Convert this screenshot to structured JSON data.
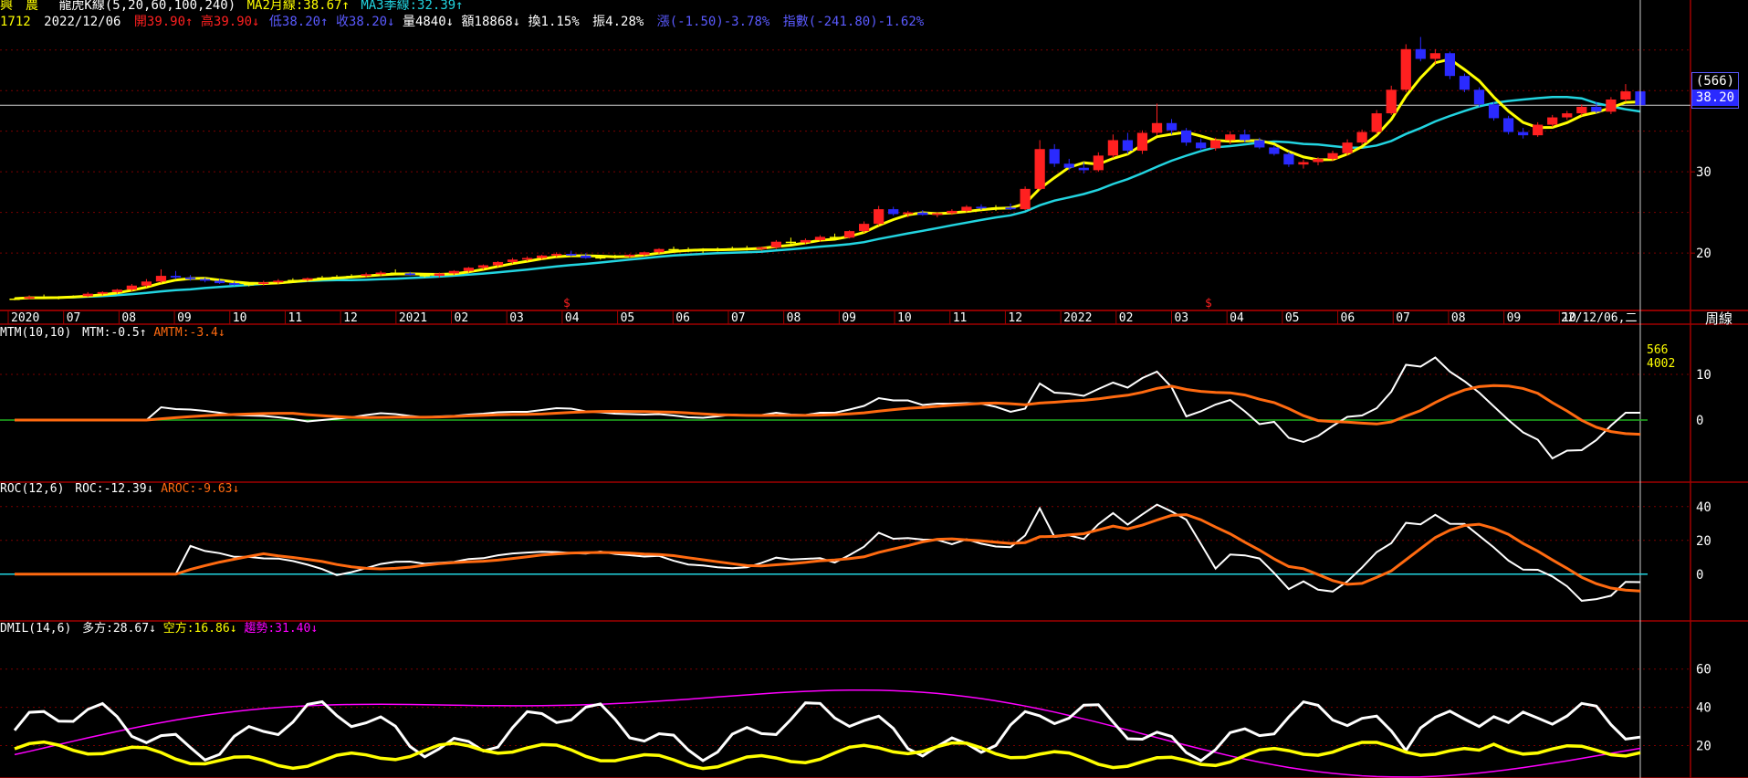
{
  "header": {
    "row1": {
      "name": "興　農",
      "kline": "龍虎K線(5,20,60,100,240)",
      "ma2": "MA2月線:38.67↑",
      "ma3": "MA3季線:32.39↑"
    },
    "row2": {
      "code": "1712",
      "date": "2022/12/06",
      "open": "開39.90↑",
      "high": "高39.90↓",
      "low": "低38.20↑",
      "close": "收38.20↓",
      "volume": "量4840↓",
      "amount": "額18868↓",
      "turnover": "換1.15%",
      "amplitude": "振4.28%",
      "change": "漲(-1.50)-3.78%",
      "index": "指數(-241.80)-1.62%"
    }
  },
  "price_box": {
    "line1": "(566)",
    "line2": "38.20"
  },
  "week_label": "周線",
  "colors": {
    "up": "#ff2020",
    "down": "#2a2aff",
    "doji": "#ffff00",
    "ma2": "#ffff00",
    "ma3": "#22d4e0",
    "grid": "#8b0000",
    "axis": "#8b0000",
    "white": "#ffffff",
    "orange": "#ff6a10",
    "green": "#20b020",
    "cyan": "#22d4e0",
    "magenta": "#ff00ff",
    "blue": "#5a5aff"
  },
  "price_panel": {
    "y_ticks": [
      "30",
      "20"
    ],
    "x_labels": [
      "2020",
      "07",
      "08",
      "09",
      "10",
      "11",
      "12",
      "2021",
      "02",
      "03",
      "04",
      "05",
      "06",
      "07",
      "08",
      "09",
      "10",
      "11",
      "12",
      "2022",
      "02",
      "03",
      "04",
      "05",
      "06",
      "07",
      "08",
      "09",
      "10"
    ],
    "cursor_label": "22/12/06,二",
    "dividend_marks": [
      "$",
      "$"
    ]
  },
  "mtm_panel": {
    "title": "MTM(10,10)",
    "value": "MTM:-0.5↑",
    "avg": "AMTM:-3.4↓",
    "y_ticks": [
      "10",
      "0"
    ],
    "cursor_text1": "566",
    "cursor_text2": "4002"
  },
  "roc_panel": {
    "title": "ROC(12,6)",
    "value": "ROC:-12.39↓",
    "avg": "AROC:-9.63↓",
    "y_ticks": [
      "40",
      "20",
      "0"
    ]
  },
  "dmi_panel": {
    "title": "DMIL(14,6)",
    "plus": "多方:28.67↓",
    "minus": "空方:16.86↓",
    "adx": "趨勢:31.40↓",
    "y_ticks": [
      "60",
      "40",
      "20"
    ]
  },
  "chart_data": {
    "type": "candlestick",
    "timeframe": "weekly",
    "candles": [
      [
        14.3,
        14.5,
        14.2,
        14.4
      ],
      [
        14.4,
        14.8,
        14.3,
        14.6
      ],
      [
        14.6,
        14.9,
        14.4,
        14.5
      ],
      [
        14.5,
        14.7,
        14.3,
        14.6
      ],
      [
        14.6,
        14.8,
        14.5,
        14.7
      ],
      [
        14.7,
        15.2,
        14.6,
        15.0
      ],
      [
        15.0,
        15.3,
        14.8,
        15.2
      ],
      [
        15.2,
        15.6,
        15.0,
        15.5
      ],
      [
        15.5,
        16.2,
        15.3,
        16.0
      ],
      [
        16.0,
        16.8,
        15.8,
        16.5
      ],
      [
        16.5,
        18.0,
        16.3,
        17.2
      ],
      [
        17.2,
        17.8,
        16.8,
        17.0
      ],
      [
        17.0,
        17.3,
        16.6,
        16.8
      ],
      [
        16.8,
        17.0,
        16.4,
        16.6
      ],
      [
        16.6,
        16.8,
        16.2,
        16.3
      ],
      [
        16.3,
        16.5,
        16.0,
        16.1
      ],
      [
        16.1,
        16.4,
        15.9,
        16.2
      ],
      [
        16.2,
        16.6,
        16.0,
        16.4
      ],
      [
        16.4,
        16.8,
        16.2,
        16.6
      ],
      [
        16.6,
        16.9,
        16.4,
        16.7
      ],
      [
        16.7,
        17.0,
        16.5,
        16.9
      ],
      [
        16.9,
        17.2,
        16.7,
        17.0
      ],
      [
        17.0,
        17.3,
        16.8,
        17.1
      ],
      [
        17.1,
        17.4,
        16.9,
        17.2
      ],
      [
        17.2,
        17.6,
        17.0,
        17.4
      ],
      [
        17.4,
        17.8,
        17.2,
        17.6
      ],
      [
        17.6,
        18.0,
        17.3,
        17.5
      ],
      [
        17.5,
        17.7,
        17.2,
        17.3
      ],
      [
        17.3,
        17.5,
        17.0,
        17.2
      ],
      [
        17.2,
        17.6,
        17.0,
        17.5
      ],
      [
        17.5,
        17.9,
        17.3,
        17.8
      ],
      [
        17.8,
        18.3,
        17.6,
        18.2
      ],
      [
        18.2,
        18.6,
        18.0,
        18.5
      ],
      [
        18.5,
        19.0,
        18.3,
        18.9
      ],
      [
        18.9,
        19.4,
        18.7,
        19.2
      ],
      [
        19.2,
        19.6,
        19.0,
        19.4
      ],
      [
        19.4,
        19.8,
        19.2,
        19.7
      ],
      [
        19.7,
        20.1,
        19.5,
        19.9
      ],
      [
        19.9,
        20.3,
        19.6,
        19.7
      ],
      [
        19.7,
        20.0,
        19.3,
        19.4
      ],
      [
        19.4,
        19.7,
        19.2,
        19.5
      ],
      [
        19.5,
        19.8,
        19.3,
        19.6
      ],
      [
        19.6,
        19.9,
        19.4,
        19.8
      ],
      [
        19.8,
        20.2,
        19.6,
        20.1
      ],
      [
        20.1,
        20.6,
        19.9,
        20.5
      ],
      [
        20.5,
        20.8,
        20.2,
        20.4
      ],
      [
        20.4,
        20.7,
        20.1,
        20.3
      ],
      [
        20.3,
        20.6,
        20.0,
        20.4
      ],
      [
        20.4,
        20.7,
        20.2,
        20.5
      ],
      [
        20.5,
        20.8,
        20.3,
        20.6
      ],
      [
        20.6,
        20.9,
        20.3,
        20.5
      ],
      [
        20.5,
        20.8,
        20.3,
        20.7
      ],
      [
        20.7,
        21.6,
        20.5,
        21.4
      ],
      [
        21.4,
        21.9,
        21.0,
        21.3
      ],
      [
        21.3,
        21.8,
        21.1,
        21.6
      ],
      [
        21.6,
        22.2,
        21.4,
        22.0
      ],
      [
        22.0,
        22.4,
        21.7,
        21.9
      ],
      [
        21.9,
        22.8,
        21.8,
        22.7
      ],
      [
        22.7,
        23.9,
        22.5,
        23.6
      ],
      [
        23.6,
        25.8,
        23.4,
        25.4
      ],
      [
        25.4,
        25.7,
        24.6,
        24.8
      ],
      [
        24.8,
        25.2,
        24.4,
        25.0
      ],
      [
        25.0,
        25.3,
        24.6,
        24.7
      ],
      [
        24.7,
        25.0,
        24.4,
        24.9
      ],
      [
        24.9,
        25.4,
        24.7,
        25.2
      ],
      [
        25.2,
        25.9,
        25.0,
        25.7
      ],
      [
        25.7,
        26.0,
        25.3,
        25.5
      ],
      [
        25.5,
        25.9,
        25.2,
        25.6
      ],
      [
        25.6,
        26.1,
        25.3,
        25.4
      ],
      [
        25.4,
        28.2,
        25.3,
        27.9
      ],
      [
        27.9,
        33.9,
        27.7,
        32.8
      ],
      [
        32.8,
        33.4,
        30.6,
        31.0
      ],
      [
        31.0,
        31.6,
        30.2,
        30.5
      ],
      [
        30.5,
        31.2,
        29.8,
        30.2
      ],
      [
        30.2,
        32.4,
        30.0,
        32.0
      ],
      [
        32.0,
        34.6,
        31.7,
        33.9
      ],
      [
        33.9,
        34.8,
        32.2,
        32.6
      ],
      [
        32.6,
        35.1,
        32.2,
        34.8
      ],
      [
        34.8,
        38.4,
        34.5,
        36.0
      ],
      [
        36.0,
        36.5,
        34.6,
        35.1
      ],
      [
        35.1,
        35.4,
        33.2,
        33.6
      ],
      [
        33.6,
        34.1,
        32.6,
        32.9
      ],
      [
        32.9,
        34.2,
        32.6,
        33.9
      ],
      [
        33.9,
        35.0,
        33.4,
        34.6
      ],
      [
        34.6,
        35.2,
        33.6,
        33.9
      ],
      [
        33.9,
        34.2,
        32.8,
        33.0
      ],
      [
        33.0,
        33.3,
        32.0,
        32.2
      ],
      [
        32.2,
        32.5,
        30.6,
        30.9
      ],
      [
        30.9,
        31.5,
        30.4,
        31.2
      ],
      [
        31.2,
        31.8,
        30.8,
        31.6
      ],
      [
        31.6,
        32.6,
        31.3,
        32.3
      ],
      [
        32.3,
        34.0,
        32.0,
        33.6
      ],
      [
        33.6,
        35.2,
        33.3,
        34.9
      ],
      [
        34.9,
        37.6,
        34.6,
        37.2
      ],
      [
        37.2,
        40.6,
        37.0,
        40.1
      ],
      [
        40.1,
        45.7,
        39.8,
        45.1
      ],
      [
        45.1,
        46.6,
        43.6,
        43.9
      ],
      [
        43.9,
        45.1,
        43.3,
        44.6
      ],
      [
        44.6,
        44.8,
        41.4,
        41.8
      ],
      [
        41.8,
        42.1,
        39.8,
        40.1
      ],
      [
        40.1,
        40.4,
        38.0,
        38.3
      ],
      [
        38.3,
        38.6,
        36.3,
        36.6
      ],
      [
        36.6,
        36.9,
        34.6,
        34.9
      ],
      [
        34.9,
        35.4,
        34.1,
        34.5
      ],
      [
        34.5,
        36.1,
        34.3,
        35.8
      ],
      [
        35.8,
        37.0,
        35.5,
        36.7
      ],
      [
        36.7,
        37.5,
        36.4,
        37.2
      ],
      [
        37.2,
        38.3,
        36.9,
        38.0
      ],
      [
        38.0,
        38.6,
        37.2,
        37.4
      ],
      [
        37.4,
        39.2,
        37.1,
        38.9
      ],
      [
        38.9,
        40.8,
        38.6,
        39.9
      ],
      [
        39.9,
        39.9,
        38.2,
        38.2
      ]
    ],
    "ma2_label": "MA2月線",
    "ma3_label": "MA3季線"
  }
}
